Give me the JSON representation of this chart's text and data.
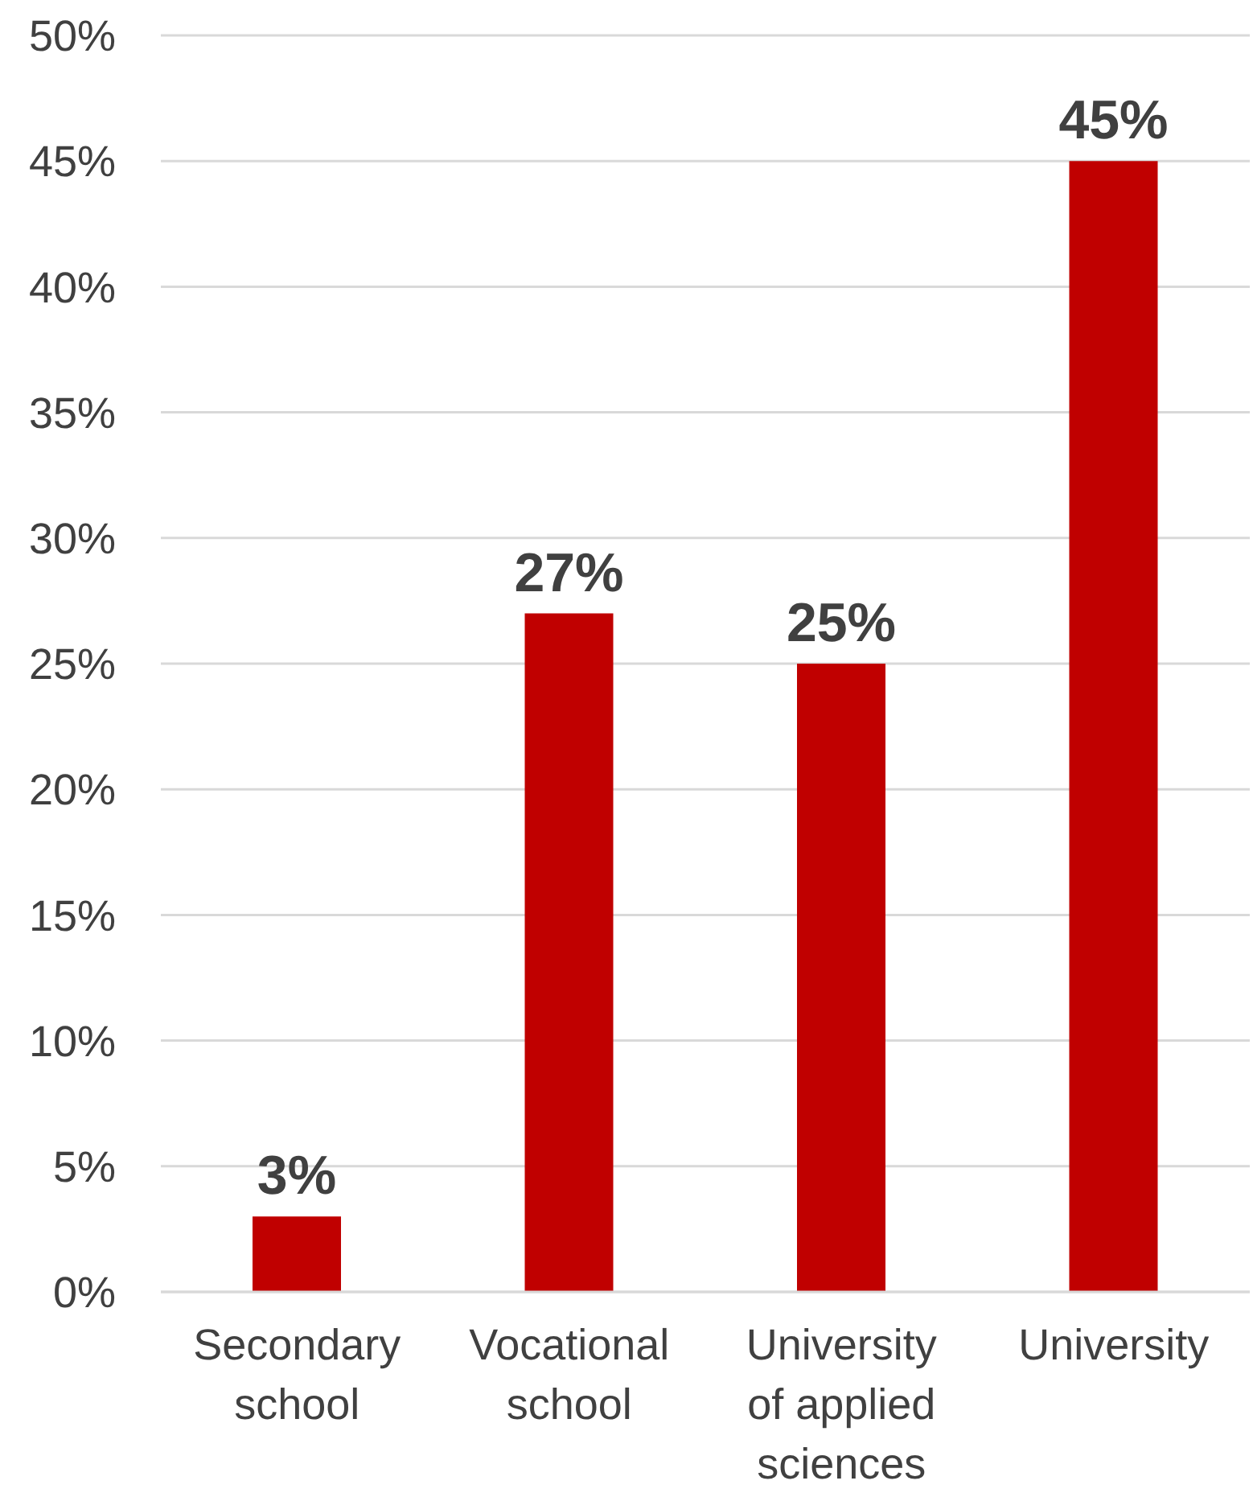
{
  "chart_data": {
    "type": "bar",
    "categories": [
      "Secondary school",
      "Vocational school",
      "University of applied sciences",
      "University"
    ],
    "values": [
      3,
      27,
      25,
      45
    ],
    "value_labels": [
      "3%",
      "27%",
      "25%",
      "45%"
    ],
    "color": "#c00000",
    "ylim": [
      0,
      50
    ],
    "yticks": [
      {
        "value": 0,
        "label": "0%"
      },
      {
        "value": 5,
        "label": "5%"
      },
      {
        "value": 10,
        "label": "10%"
      },
      {
        "value": 15,
        "label": "15%"
      },
      {
        "value": 20,
        "label": "20%"
      },
      {
        "value": 25,
        "label": "25%"
      },
      {
        "value": 30,
        "label": "30%"
      },
      {
        "value": 35,
        "label": "35%"
      },
      {
        "value": 40,
        "label": "40%"
      },
      {
        "value": 45,
        "label": "45%"
      },
      {
        "value": 50,
        "label": "50%"
      }
    ],
    "grid": "y"
  }
}
